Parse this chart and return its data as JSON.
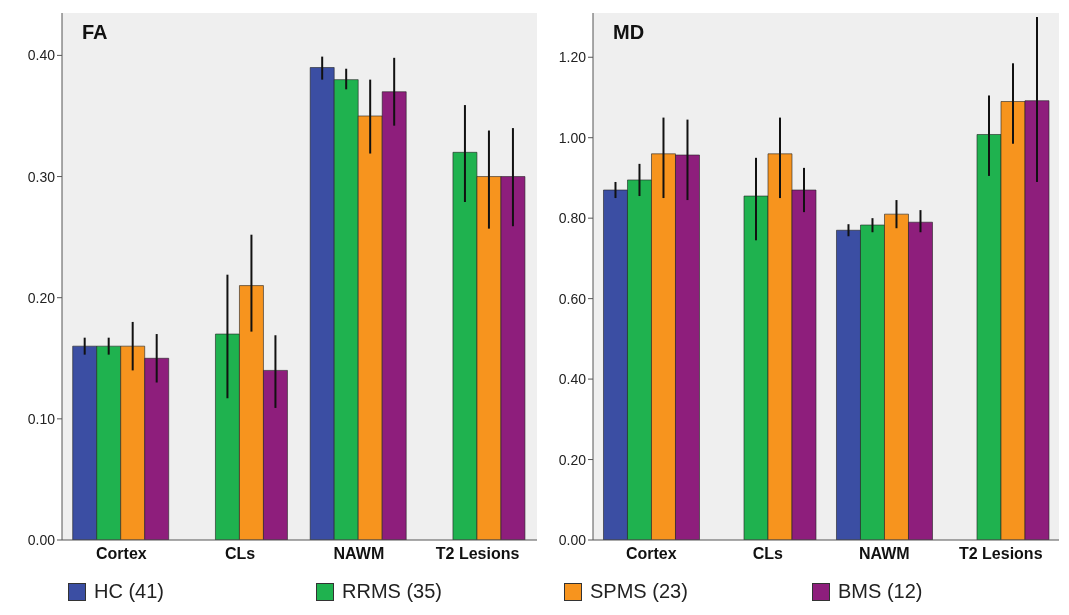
{
  "chart_data": [
    {
      "type": "bar",
      "title": "FA",
      "categories": [
        "Cortex",
        "CLs",
        "NAWM",
        "T2 Lesions"
      ],
      "ylim": [
        0,
        0.435
      ],
      "yticks": [
        {
          "value": 0,
          "label": "0.00"
        },
        {
          "value": 0.1,
          "label": "0.10"
        },
        {
          "value": 0.2,
          "label": "0.20"
        },
        {
          "value": 0.3,
          "label": "0.30"
        },
        {
          "value": 0.4,
          "label": "0.40"
        }
      ],
      "legend": "bottom",
      "series": [
        {
          "name": "HC (41)",
          "color": "#3b4ea3",
          "values": [
            0.16,
            null,
            0.39,
            null
          ],
          "errors": [
            [
              0.153,
              0.167
            ],
            null,
            [
              0.38,
              0.399
            ],
            null
          ]
        },
        {
          "name": "RRMS (35)",
          "color": "#1fb24f",
          "values": [
            0.16,
            0.17,
            0.38,
            0.32
          ],
          "errors": [
            [
              0.153,
              0.167
            ],
            [
              0.117,
              0.219
            ],
            [
              0.372,
              0.389
            ],
            [
              0.279,
              0.359
            ]
          ]
        },
        {
          "name": "SPMS (23)",
          "color": "#f7941e",
          "values": [
            0.16,
            0.21,
            0.35,
            0.3
          ],
          "errors": [
            [
              0.14,
              0.18
            ],
            [
              0.172,
              0.252
            ],
            [
              0.319,
              0.38
            ],
            [
              0.257,
              0.338
            ]
          ]
        },
        {
          "name": "BMS (12)",
          "color": "#8e1e7c",
          "values": [
            0.15,
            0.14,
            0.37,
            0.3
          ],
          "errors": [
            [
              0.13,
              0.17
            ],
            [
              0.109,
              0.169
            ],
            [
              0.342,
              0.398
            ],
            [
              0.259,
              0.34
            ]
          ]
        }
      ]
    },
    {
      "type": "bar",
      "title": "MD",
      "categories": [
        "Cortex",
        "CLs",
        "NAWM",
        "T2 Lesions"
      ],
      "ylim": [
        0,
        1.31
      ],
      "yticks": [
        {
          "value": 0,
          "label": "0.00"
        },
        {
          "value": 0.2,
          "label": "0.20"
        },
        {
          "value": 0.4,
          "label": "0.40"
        },
        {
          "value": 0.6,
          "label": "0.60"
        },
        {
          "value": 0.8,
          "label": "0.80"
        },
        {
          "value": 1,
          "label": "1.00"
        },
        {
          "value": 1.2,
          "label": "1.20"
        }
      ],
      "series": [
        {
          "color": "#3b4ea3",
          "values": [
            0.87,
            null,
            0.77,
            null
          ],
          "errors": [
            [
              0.85,
              0.89
            ],
            null,
            [
              0.755,
              0.785
            ],
            null
          ]
        },
        {
          "color": "#1fb24f",
          "values": [
            0.895,
            0.855,
            0.783,
            1.008
          ],
          "errors": [
            [
              0.855,
              0.935
            ],
            [
              0.745,
              0.95
            ],
            [
              0.765,
              0.8
            ],
            [
              0.905,
              1.105
            ]
          ]
        },
        {
          "color": "#f7941e",
          "values": [
            0.96,
            0.96,
            0.81,
            1.09
          ],
          "errors": [
            [
              0.85,
              1.05
            ],
            [
              0.85,
              1.05
            ],
            [
              0.775,
              0.845
            ],
            [
              0.985,
              1.185
            ]
          ]
        },
        {
          "color": "#8e1e7c",
          "values": [
            0.957,
            0.87,
            0.79,
            1.092
          ],
          "errors": [
            [
              0.845,
              1.045
            ],
            [
              0.815,
              0.925
            ],
            [
              0.765,
              0.82
            ],
            [
              0.89,
              1.3
            ]
          ]
        }
      ]
    }
  ]
}
